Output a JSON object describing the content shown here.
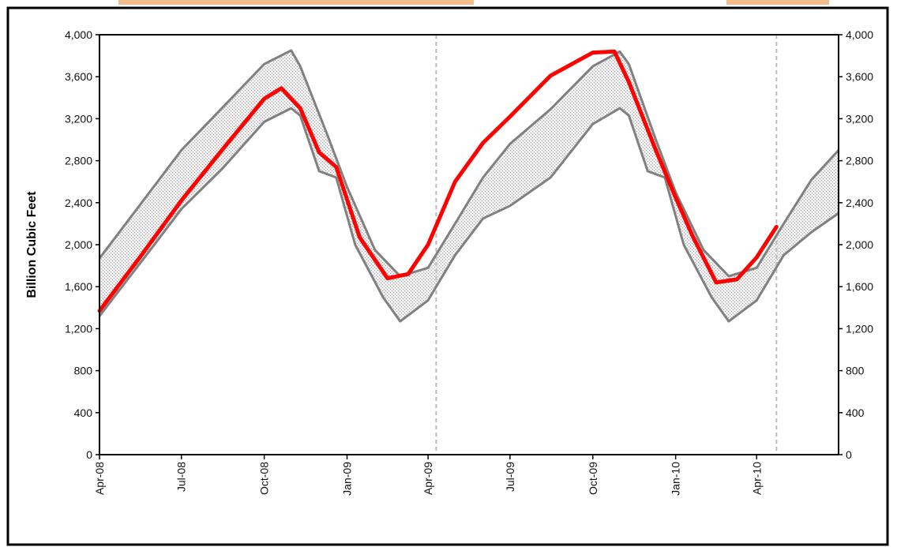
{
  "chart_data": {
    "type": "area",
    "title": "",
    "xlabel": "",
    "ylabel": "Billion Cubic Feet",
    "ylim": [
      0,
      4000
    ],
    "y_ticks": [
      0,
      400,
      800,
      1200,
      1600,
      2000,
      2400,
      2800,
      3200,
      3600,
      4000
    ],
    "y_tick_labels": [
      "0",
      "400",
      "800",
      "1,200",
      "1,600",
      "2,000",
      "2,400",
      "2,800",
      "3,200",
      "3,600",
      "4,000"
    ],
    "x_tick_labels": [
      "Apr-08",
      "Jul-08",
      "Oct-08",
      "Jan-09",
      "Apr-09",
      "Jul-09",
      "Oct-09",
      "Jan-10",
      "Apr-10"
    ],
    "x_ticks": [
      "2008-04-01",
      "2008-07-01",
      "2008-10-01",
      "2009-01-01",
      "2009-04-01",
      "2009-07-01",
      "2009-10-01",
      "2010-01-01",
      "2010-04-01"
    ],
    "xlim": [
      "2008-04-01",
      "2010-07-01"
    ],
    "y_axis_right": true,
    "grid": false,
    "vertical_markers": [
      "2009-04-10",
      "2010-04-23"
    ],
    "colors": {
      "storage": "#ff0000",
      "range_edges": "#808080",
      "range_fill": "#e2e2e2",
      "markers": "#bbbbbb",
      "frame": "#000000",
      "top_band": "#f4bd8c"
    },
    "series": [
      {
        "kind": "range_upper",
        "x": [
          "2008-04-01",
          "2008-06-01",
          "2008-07-01",
          "2008-08-15",
          "2008-10-01",
          "2008-10-31",
          "2008-11-10",
          "2008-12-10",
          "2009-01-01",
          "2009-02-01",
          "2009-02-20",
          "2009-03-01",
          "2009-04-01",
          "2009-05-01",
          "2009-06-01",
          "2009-07-01",
          "2009-08-15",
          "2009-10-01",
          "2009-10-31",
          "2009-11-10",
          "2009-12-10",
          "2010-01-01",
          "2010-02-01",
          "2010-02-20",
          "2010-03-01",
          "2010-04-01",
          "2010-05-01",
          "2010-06-01",
          "2010-07-01"
        ],
        "y": [
          1870,
          2560,
          2900,
          3300,
          3720,
          3850,
          3700,
          3050,
          2550,
          1950,
          1780,
          1700,
          1780,
          2200,
          2640,
          2960,
          3290,
          3700,
          3840,
          3720,
          3000,
          2500,
          1950,
          1780,
          1700,
          1780,
          2200,
          2620,
          2900
        ]
      },
      {
        "kind": "range_lower",
        "x": [
          "2008-04-01",
          "2008-06-01",
          "2008-07-01",
          "2008-08-15",
          "2008-10-01",
          "2008-10-31",
          "2008-11-10",
          "2008-12-01",
          "2008-12-20",
          "2009-01-10",
          "2009-02-10",
          "2009-03-01",
          "2009-04-01",
          "2009-05-01",
          "2009-06-01",
          "2009-07-01",
          "2009-08-15",
          "2009-10-01",
          "2009-10-31",
          "2009-11-10",
          "2009-12-01",
          "2009-12-20",
          "2010-01-10",
          "2010-02-10",
          "2010-03-01",
          "2010-04-01",
          "2010-05-01",
          "2010-06-01",
          "2010-07-01"
        ],
        "y": [
          1320,
          2000,
          2340,
          2720,
          3170,
          3300,
          3230,
          2700,
          2640,
          2000,
          1500,
          1270,
          1470,
          1900,
          2250,
          2370,
          2640,
          3150,
          3300,
          3230,
          2700,
          2640,
          2000,
          1500,
          1270,
          1470,
          1900,
          2120,
          2300
        ]
      },
      {
        "kind": "current",
        "x": [
          "2008-04-01",
          "2008-05-15",
          "2008-07-01",
          "2008-08-15",
          "2008-10-01",
          "2008-10-20",
          "2008-11-10",
          "2008-12-01",
          "2008-12-20",
          "2009-01-15",
          "2009-02-15",
          "2009-03-10",
          "2009-04-01",
          "2009-05-01",
          "2009-06-01",
          "2009-07-01",
          "2009-08-15",
          "2009-10-01",
          "2009-10-25",
          "2009-11-10",
          "2009-12-10",
          "2010-01-01",
          "2010-01-20",
          "2010-02-15",
          "2010-03-10",
          "2010-04-01",
          "2010-04-23"
        ],
        "y": [
          1370,
          1870,
          2420,
          2900,
          3390,
          3490,
          3300,
          2880,
          2740,
          2070,
          1680,
          1720,
          2000,
          2600,
          2970,
          3220,
          3610,
          3830,
          3840,
          3550,
          2900,
          2450,
          2080,
          1640,
          1670,
          1880,
          2170
        ]
      }
    ]
  }
}
